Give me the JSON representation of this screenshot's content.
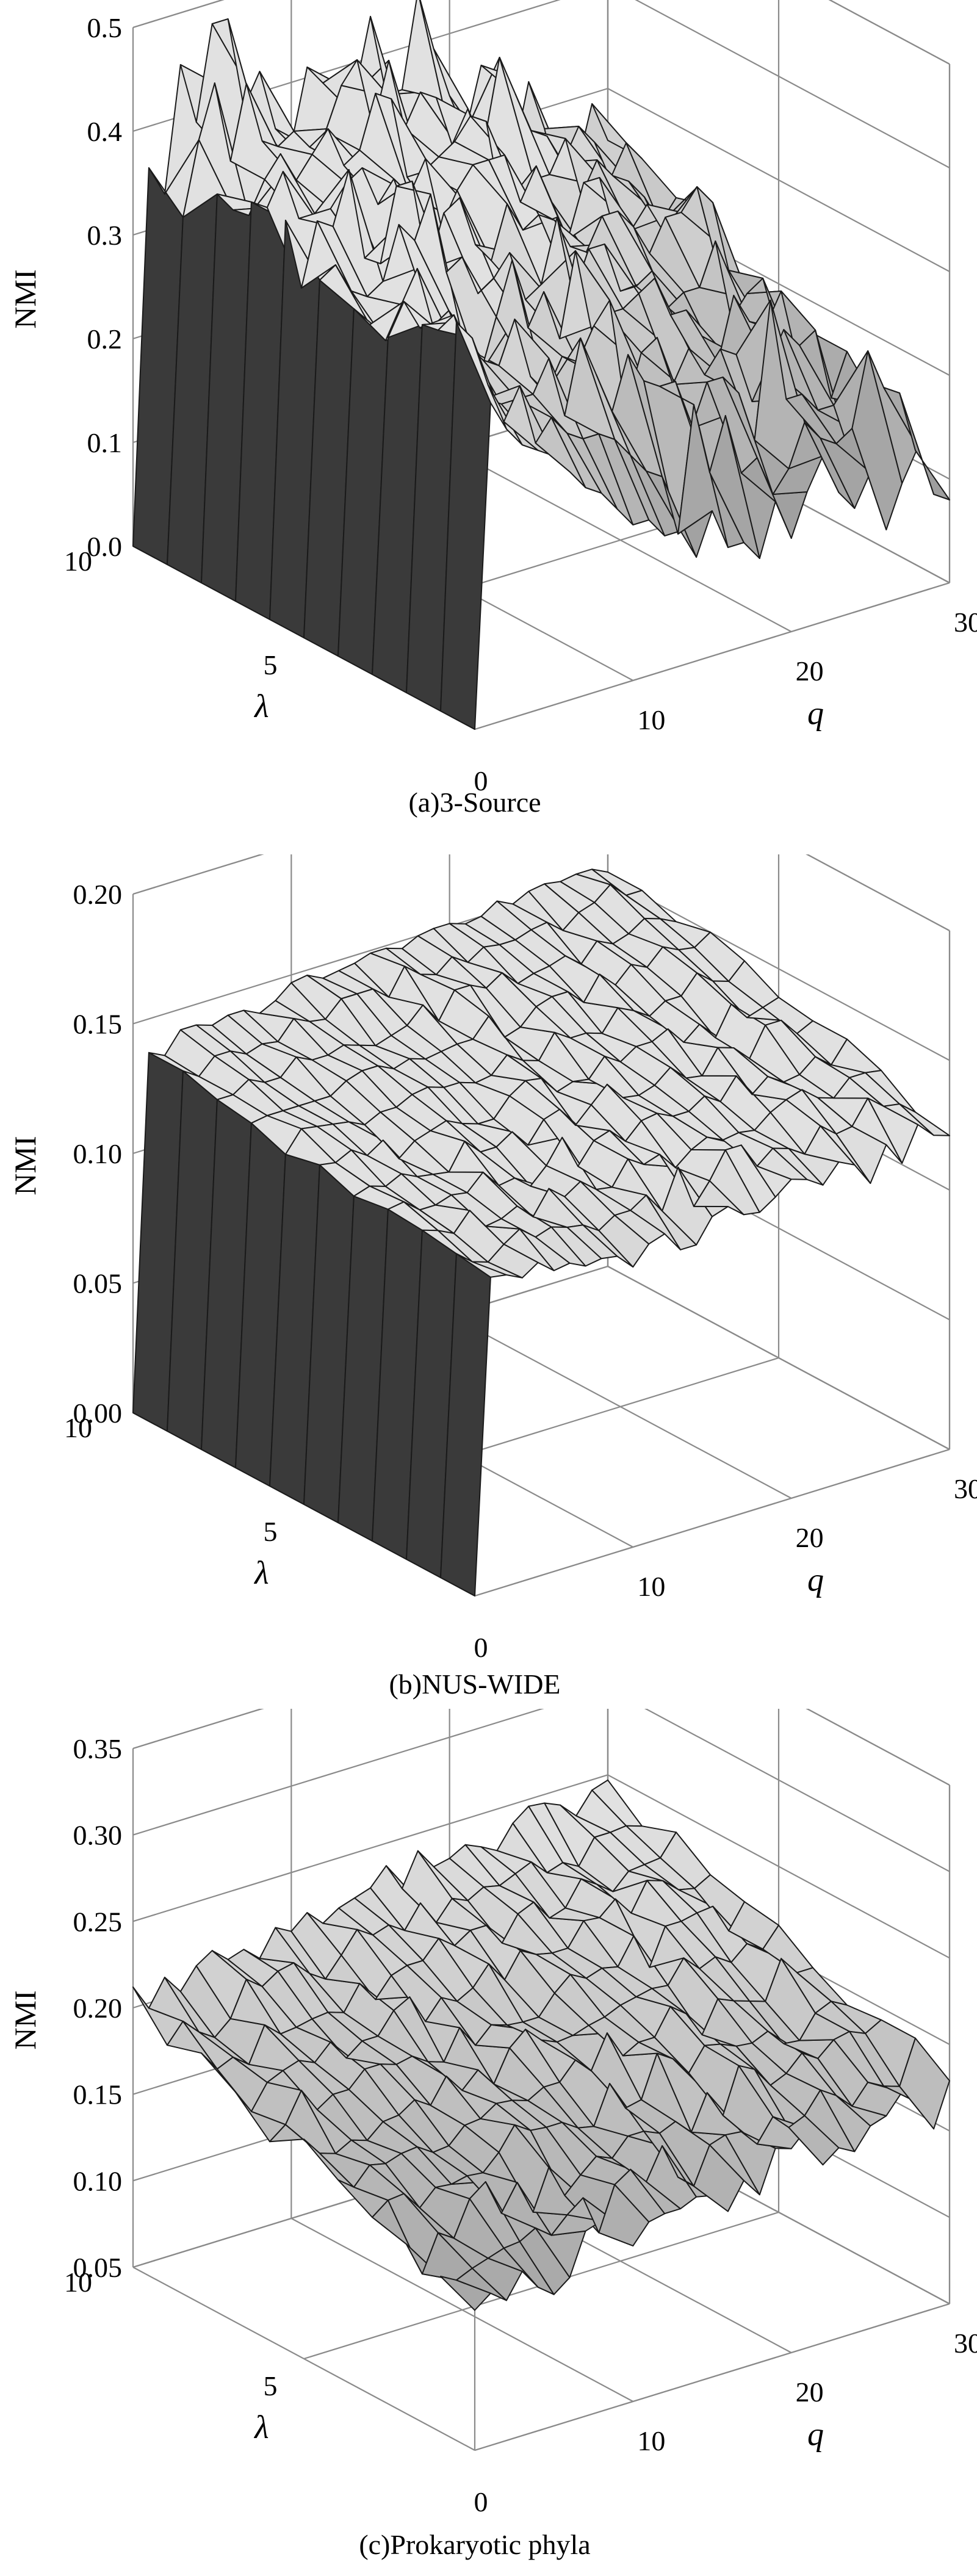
{
  "chart_data": [
    {
      "type": "surface",
      "caption": "(a)3-Source",
      "zlabel": "NMI",
      "xlabel": "q",
      "ylabel": "λ",
      "xlim": [
        0,
        30
      ],
      "ylim": [
        0,
        10
      ],
      "zlim": [
        0,
        0.5
      ],
      "x_ticks": [
        "10",
        "20",
        "30"
      ],
      "y_ticks": [
        "0",
        "5",
        "10"
      ],
      "z_ticks": [
        "0.0",
        "0.1",
        "0.2",
        "0.3",
        "0.4",
        "0.5"
      ],
      "grid": true,
      "surface_colors": {
        "face": "#b4b4b4",
        "dark": "#3a3a3a"
      },
      "nmi_values": [
        [
          0,
          0.31,
          0.28,
          0.26,
          0.25,
          0.24,
          0.22,
          0.2,
          0.19,
          0.17,
          0.15,
          0.15,
          0.13,
          0.13,
          0.1,
          0.14,
          0.1,
          0.1,
          0.08,
          0.13,
          0.09,
          0.13,
          0.16,
          0.12,
          0.1,
          0.13,
          0.07,
          0.11,
          0.14,
          0.09,
          0.08
        ],
        [
          0,
          0.37,
          0.35,
          0.3,
          0.26,
          0.29,
          0.23,
          0.25,
          0.23,
          0.22,
          0.22,
          0.21,
          0.19,
          0.17,
          0.16,
          0.1,
          0.22,
          0.15,
          0.2,
          0.14,
          0.15,
          0.11,
          0.13,
          0.17,
          0.15,
          0.14,
          0.15,
          0.22,
          0.18,
          0.17,
          0.11
        ],
        [
          0,
          0.35,
          0.34,
          0.35,
          0.3,
          0.26,
          0.25,
          0.25,
          0.25,
          0.28,
          0.22,
          0.29,
          0.25,
          0.21,
          0.26,
          0.23,
          0.22,
          0.22,
          0.17,
          0.21,
          0.21,
          0.19,
          0.14,
          0.27,
          0.17,
          0.17,
          0.15,
          0.15,
          0.1,
          0.14,
          0.13
        ],
        [
          0,
          0.32,
          0.35,
          0.32,
          0.31,
          0.3,
          0.29,
          0.27,
          0.26,
          0.3,
          0.24,
          0.22,
          0.25,
          0.24,
          0.27,
          0.29,
          0.18,
          0.23,
          0.24,
          0.19,
          0.22,
          0.19,
          0.21,
          0.2,
          0.15,
          0.18,
          0.21,
          0.19,
          0.2,
          0.13,
          0.17
        ],
        [
          0,
          0.33,
          0.31,
          0.29,
          0.32,
          0.35,
          0.29,
          0.3,
          0.26,
          0.23,
          0.28,
          0.33,
          0.26,
          0.29,
          0.24,
          0.32,
          0.24,
          0.25,
          0.25,
          0.26,
          0.27,
          0.23,
          0.23,
          0.2,
          0.17,
          0.23,
          0.2,
          0.19,
          0.22,
          0.15,
          0.17
        ],
        [
          0,
          0.34,
          0.35,
          0.32,
          0.31,
          0.32,
          0.37,
          0.35,
          0.39,
          0.31,
          0.32,
          0.28,
          0.29,
          0.31,
          0.26,
          0.27,
          0.33,
          0.25,
          0.29,
          0.29,
          0.24,
          0.24,
          0.25,
          0.21,
          0.22,
          0.22,
          0.26,
          0.18,
          0.2,
          0.21,
          0.15
        ],
        [
          0,
          0.38,
          0.31,
          0.37,
          0.36,
          0.41,
          0.32,
          0.31,
          0.38,
          0.38,
          0.29,
          0.34,
          0.35,
          0.3,
          0.28,
          0.33,
          0.3,
          0.31,
          0.3,
          0.27,
          0.26,
          0.29,
          0.29,
          0.27,
          0.24,
          0.27,
          0.27,
          0.29,
          0.27,
          0.2,
          0.17
        ],
        [
          0,
          0.38,
          0.37,
          0.4,
          0.35,
          0.35,
          0.35,
          0.37,
          0.38,
          0.34,
          0.36,
          0.34,
          0.37,
          0.3,
          0.33,
          0.35,
          0.35,
          0.35,
          0.3,
          0.33,
          0.29,
          0.25,
          0.3,
          0.3,
          0.24,
          0.24,
          0.26,
          0.23,
          0.19,
          0.26,
          0.24
        ],
        [
          0,
          0.37,
          0.35,
          0.34,
          0.37,
          0.39,
          0.36,
          0.38,
          0.4,
          0.36,
          0.37,
          0.42,
          0.41,
          0.33,
          0.33,
          0.34,
          0.35,
          0.37,
          0.36,
          0.27,
          0.27,
          0.29,
          0.29,
          0.32,
          0.26,
          0.29,
          0.27,
          0.26,
          0.24,
          0.21,
          0.23
        ],
        [
          0,
          0.33,
          0.4,
          0.45,
          0.37,
          0.44,
          0.38,
          0.37,
          0.38,
          0.36,
          0.37,
          0.41,
          0.43,
          0.36,
          0.42,
          0.35,
          0.38,
          0.37,
          0.32,
          0.35,
          0.31,
          0.39,
          0.35,
          0.31,
          0.3,
          0.27,
          0.3,
          0.28,
          0.24,
          0.27,
          0.25
        ],
        [
          0,
          0.36,
          0.33,
          0.45,
          0.39,
          0.48,
          0.48,
          0.39,
          0.42,
          0.36,
          0.34,
          0.41,
          0.39,
          0.37,
          0.37,
          0.44,
          0.36,
          0.36,
          0.45,
          0.39,
          0.34,
          0.3,
          0.36,
          0.35,
          0.26,
          0.33,
          0.28,
          0.21,
          0.23,
          0.29,
          0.25
        ]
      ]
    },
    {
      "type": "surface",
      "caption": "(b)NUS-WIDE",
      "zlabel": "NMI",
      "xlabel": "q",
      "ylabel": "λ",
      "xlim": [
        0,
        30
      ],
      "ylim": [
        0,
        10
      ],
      "zlim": [
        0,
        0.2
      ],
      "x_ticks": [
        "10",
        "20",
        "30"
      ],
      "y_ticks": [
        "0",
        "5",
        "10"
      ],
      "z_ticks": [
        "0.00",
        "0.05",
        "0.10",
        "0.15",
        "0.20"
      ],
      "grid": true,
      "surface_colors": {
        "face": "#c4c4c4",
        "dark": "#3a3a3a"
      },
      "nmi_values": [
        [
          0,
          0.121,
          0.12,
          0.117,
          0.121,
          0.116,
          0.117,
          0.114,
          0.115,
          0.114,
          0.108,
          0.115,
          0.117,
          0.109,
          0.109,
          0.118,
          0.12,
          0.115,
          0.114,
          0.118,
          0.123,
          0.121,
          0.117,
          0.124,
          0.121,
          0.112,
          0.125,
          0.116,
          0.129,
          0.123,
          0.121
        ],
        [
          0,
          0.123,
          0.118,
          0.116,
          0.121,
          0.125,
          0.12,
          0.122,
          0.12,
          0.119,
          0.115,
          0.119,
          0.119,
          0.123,
          0.115,
          0.13,
          0.113,
          0.121,
          0.131,
          0.131,
          0.121,
          0.126,
          0.124,
          0.12,
          0.129,
          0.124,
          0.125,
          0.134,
          0.129,
          0.128,
          0.123
        ],
        [
          0,
          0.125,
          0.123,
          0.12,
          0.127,
          0.119,
          0.12,
          0.123,
          0.117,
          0.126,
          0.121,
          0.125,
          0.12,
          0.119,
          0.128,
          0.124,
          0.126,
          0.119,
          0.124,
          0.127,
          0.124,
          0.125,
          0.124,
          0.129,
          0.132,
          0.134,
          0.129,
          0.127,
          0.133,
          0.133,
          0.132
        ],
        [
          0,
          0.126,
          0.127,
          0.122,
          0.122,
          0.124,
          0.123,
          0.129,
          0.122,
          0.123,
          0.118,
          0.124,
          0.133,
          0.12,
          0.128,
          0.13,
          0.124,
          0.13,
          0.131,
          0.128,
          0.128,
          0.132,
          0.128,
          0.136,
          0.127,
          0.132,
          0.128,
          0.129,
          0.134,
          0.129,
          0.137
        ],
        [
          0,
          0.124,
          0.126,
          0.124,
          0.127,
          0.124,
          0.123,
          0.122,
          0.132,
          0.126,
          0.126,
          0.13,
          0.123,
          0.131,
          0.133,
          0.125,
          0.131,
          0.137,
          0.13,
          0.129,
          0.131,
          0.136,
          0.13,
          0.129,
          0.138,
          0.136,
          0.13,
          0.141,
          0.141,
          0.134,
          0.137
        ],
        [
          0,
          0.129,
          0.128,
          0.131,
          0.127,
          0.131,
          0.122,
          0.127,
          0.129,
          0.131,
          0.128,
          0.126,
          0.126,
          0.133,
          0.137,
          0.136,
          0.129,
          0.131,
          0.13,
          0.137,
          0.133,
          0.137,
          0.137,
          0.14,
          0.133,
          0.138,
          0.131,
          0.142,
          0.135,
          0.137,
          0.139
        ],
        [
          0,
          0.126,
          0.134,
          0.133,
          0.132,
          0.131,
          0.128,
          0.131,
          0.131,
          0.134,
          0.135,
          0.133,
          0.133,
          0.131,
          0.132,
          0.138,
          0.134,
          0.132,
          0.141,
          0.137,
          0.137,
          0.135,
          0.143,
          0.14,
          0.136,
          0.14,
          0.14,
          0.147,
          0.142,
          0.14,
          0.146
        ],
        [
          0,
          0.131,
          0.132,
          0.132,
          0.132,
          0.132,
          0.132,
          0.136,
          0.138,
          0.138,
          0.135,
          0.137,
          0.135,
          0.136,
          0.137,
          0.137,
          0.144,
          0.134,
          0.136,
          0.142,
          0.144,
          0.144,
          0.138,
          0.147,
          0.141,
          0.147,
          0.144,
          0.15,
          0.147,
          0.146,
          0.15
        ],
        [
          0,
          0.133,
          0.133,
          0.137,
          0.134,
          0.134,
          0.14,
          0.137,
          0.137,
          0.139,
          0.137,
          0.135,
          0.137,
          0.139,
          0.145,
          0.137,
          0.147,
          0.147,
          0.144,
          0.148,
          0.142,
          0.144,
          0.145,
          0.147,
          0.142,
          0.149,
          0.146,
          0.148,
          0.152,
          0.15,
          0.147
        ],
        [
          0,
          0.137,
          0.133,
          0.139,
          0.139,
          0.136,
          0.138,
          0.137,
          0.144,
          0.141,
          0.14,
          0.146,
          0.146,
          0.146,
          0.141,
          0.151,
          0.146,
          0.144,
          0.149,
          0.145,
          0.149,
          0.148,
          0.148,
          0.15,
          0.151,
          0.146,
          0.151,
          0.153,
          0.158,
          0.152,
          0.152
        ],
        [
          0,
          0.137,
          0.134,
          0.142,
          0.142,
          0.14,
          0.142,
          0.142,
          0.139,
          0.142,
          0.147,
          0.148,
          0.145,
          0.146,
          0.147,
          0.149,
          0.149,
          0.147,
          0.15,
          0.151,
          0.151,
          0.149,
          0.15,
          0.154,
          0.151,
          0.154,
          0.155,
          0.154,
          0.155,
          0.155,
          0.152
        ]
      ]
    },
    {
      "type": "surface",
      "caption": "(c)Prokaryotic phyla",
      "zlabel": "NMI",
      "xlabel": "q",
      "ylabel": "λ",
      "xlim": [
        0,
        30
      ],
      "ylim": [
        0,
        10
      ],
      "zlim": [
        0.05,
        0.35
      ],
      "x_ticks": [
        "10",
        "20",
        "30"
      ],
      "y_ticks": [
        "0",
        "5",
        "10"
      ],
      "z_ticks": [
        "0.05",
        "0.10",
        "0.15",
        "0.20",
        "0.25",
        "0.30",
        "0.35"
      ],
      "grid": true,
      "surface_colors": {
        "face": "#a8a8a8",
        "dark": "#3a3a3a"
      },
      "nmi_values": [
        [
          0.131,
          0.138,
          0.131,
          0.145,
          0.133,
          0.126,
          0.133,
          0.157,
          0.16,
          0.156,
          0.14,
          0.151,
          0.153,
          0.153,
          0.157,
          0.155,
          0.143,
          0.158,
          0.147,
          0.171,
          0.168,
          0.177,
          0.153,
          0.16,
          0.155,
          0.167,
          0.17,
          0.181,
          0.172,
          0.154,
          0.179
        ],
        [
          0.14,
          0.135,
          0.139,
          0.142,
          0.145,
          0.146,
          0.151,
          0.144,
          0.153,
          0.16,
          0.137,
          0.162,
          0.168,
          0.158,
          0.176,
          0.155,
          0.147,
          0.168,
          0.171,
          0.17,
          0.16,
          0.173,
          0.164,
          0.168,
          0.18,
          0.174,
          0.165,
          0.176,
          0.171,
          0.168,
          0.193
        ],
        [
          0.148,
          0.128,
          0.149,
          0.143,
          0.163,
          0.17,
          0.149,
          0.164,
          0.144,
          0.167,
          0.148,
          0.157,
          0.165,
          0.161,
          0.171,
          0.171,
          0.167,
          0.171,
          0.162,
          0.182,
          0.166,
          0.192,
          0.187,
          0.175,
          0.179,
          0.188,
          0.182,
          0.19,
          0.192,
          0.188,
          0.193
        ],
        [
          0.153,
          0.16,
          0.161,
          0.15,
          0.159,
          0.158,
          0.16,
          0.159,
          0.168,
          0.181,
          0.175,
          0.174,
          0.174,
          0.168,
          0.166,
          0.188,
          0.171,
          0.173,
          0.197,
          0.191,
          0.18,
          0.193,
          0.191,
          0.187,
          0.186,
          0.19,
          0.18,
          0.179,
          0.192,
          0.196,
          0.191
        ],
        [
          0.164,
          0.157,
          0.167,
          0.165,
          0.168,
          0.169,
          0.163,
          0.164,
          0.173,
          0.174,
          0.18,
          0.179,
          0.176,
          0.181,
          0.181,
          0.191,
          0.182,
          0.201,
          0.185,
          0.19,
          0.19,
          0.205,
          0.198,
          0.183,
          0.201,
          0.197,
          0.194,
          0.191,
          0.213,
          0.202,
          0.202
        ],
        [
          0.177,
          0.166,
          0.163,
          0.168,
          0.165,
          0.173,
          0.174,
          0.18,
          0.174,
          0.188,
          0.177,
          0.186,
          0.175,
          0.193,
          0.201,
          0.192,
          0.188,
          0.189,
          0.192,
          0.194,
          0.198,
          0.2,
          0.202,
          0.201,
          0.214,
          0.205,
          0.209,
          0.203,
          0.211,
          0.205,
          0.216
        ],
        [
          0.165,
          0.172,
          0.189,
          0.175,
          0.181,
          0.181,
          0.19,
          0.19,
          0.187,
          0.189,
          0.183,
          0.18,
          0.197,
          0.184,
          0.193,
          0.19,
          0.189,
          0.189,
          0.2,
          0.208,
          0.203,
          0.206,
          0.204,
          0.219,
          0.198,
          0.219,
          0.219,
          0.221,
          0.222,
          0.205,
          0.219
        ],
        [
          0.183,
          0.169,
          0.183,
          0.187,
          0.19,
          0.186,
          0.195,
          0.183,
          0.19,
          0.19,
          0.202,
          0.207,
          0.19,
          0.201,
          0.196,
          0.201,
          0.212,
          0.2,
          0.214,
          0.209,
          0.207,
          0.207,
          0.22,
          0.219,
          0.227,
          0.216,
          0.232,
          0.229,
          0.221,
          0.219,
          0.224
        ],
        [
          0.195,
          0.183,
          0.187,
          0.18,
          0.2,
          0.192,
          0.193,
          0.195,
          0.196,
          0.193,
          0.207,
          0.195,
          0.206,
          0.209,
          0.209,
          0.219,
          0.212,
          0.218,
          0.218,
          0.205,
          0.219,
          0.223,
          0.211,
          0.214,
          0.228,
          0.222,
          0.215,
          0.224,
          0.225,
          0.226,
          0.238
        ],
        [
          0.189,
          0.2,
          0.191,
          0.185,
          0.193,
          0.213,
          0.206,
          0.212,
          0.214,
          0.205,
          0.199,
          0.21,
          0.222,
          0.216,
          0.219,
          0.213,
          0.226,
          0.212,
          0.223,
          0.219,
          0.224,
          0.222,
          0.226,
          0.23,
          0.221,
          0.224,
          0.219,
          0.233,
          0.233,
          0.234,
          0.231
        ],
        [
          0.212,
          0.197,
          0.212,
          0.201,
          0.213,
          0.219,
          0.211,
          0.214,
          0.206,
          0.221,
          0.216,
          0.224,
          0.215,
          0.221,
          0.224,
          0.227,
          0.237,
          0.221,
          0.24,
          0.228,
          0.23,
          0.235,
          0.231,
          0.226,
          0.239,
          0.246,
          0.245,
          0.241,
          0.232,
          0.244,
          0.247
        ]
      ]
    }
  ]
}
